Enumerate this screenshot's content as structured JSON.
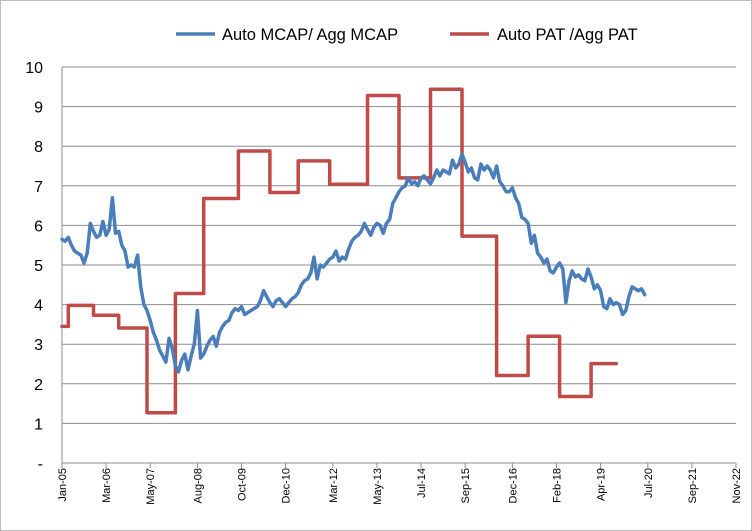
{
  "chart_data": {
    "type": "line",
    "title": "",
    "xlabel": "",
    "ylabel": "",
    "ylim": [
      0,
      10
    ],
    "y_ticks": [
      "-",
      "1",
      "2",
      "3",
      "4",
      "5",
      "6",
      "7",
      "8",
      "9",
      "10"
    ],
    "grid": true,
    "legend_position": "top",
    "x_range": [
      0,
      214
    ],
    "x_tick_labels": [
      "Jan-05",
      "Mar-06",
      "May-07",
      "Aug-08",
      "Oct-09",
      "Dec-10",
      "Mar-12",
      "May-13",
      "Jul-14",
      "Sep-15",
      "Dec-16",
      "Feb-18",
      "Apr-19",
      "Jul-20",
      "Sep-21",
      "Nov-22"
    ],
    "x_tick_positions": [
      0,
      14,
      28,
      43,
      57,
      71,
      86,
      100,
      114,
      128,
      143,
      157,
      171,
      186,
      200,
      214
    ],
    "series": [
      {
        "name": "Auto MCAP/ Agg MCAP",
        "color": "#4a7ebb",
        "points": [
          [
            0,
            5.65
          ],
          [
            1,
            5.6
          ],
          [
            2,
            5.7
          ],
          [
            3,
            5.5
          ],
          [
            4,
            5.35
          ],
          [
            6,
            5.25
          ],
          [
            7,
            5.05
          ],
          [
            8,
            5.3
          ],
          [
            9,
            6.05
          ],
          [
            10,
            5.85
          ],
          [
            11,
            5.7
          ],
          [
            12,
            5.75
          ],
          [
            13,
            6.1
          ],
          [
            14,
            5.75
          ],
          [
            15,
            5.9
          ],
          [
            16,
            6.7
          ],
          [
            17,
            5.8
          ],
          [
            18,
            5.85
          ],
          [
            19,
            5.5
          ],
          [
            20,
            5.35
          ],
          [
            21,
            4.95
          ],
          [
            22,
            5.0
          ],
          [
            23,
            4.95
          ],
          [
            24,
            5.25
          ],
          [
            25,
            4.45
          ],
          [
            26,
            4.0
          ],
          [
            27,
            3.85
          ],
          [
            28,
            3.6
          ],
          [
            29,
            3.3
          ],
          [
            30,
            3.1
          ],
          [
            31,
            2.85
          ],
          [
            32,
            2.7
          ],
          [
            33,
            2.55
          ],
          [
            34,
            3.15
          ],
          [
            35,
            2.9
          ],
          [
            36,
            2.45
          ],
          [
            37,
            2.3
          ],
          [
            38,
            2.6
          ],
          [
            39,
            2.75
          ],
          [
            40,
            2.35
          ],
          [
            41,
            2.7
          ],
          [
            42,
            3.0
          ],
          [
            43,
            3.85
          ],
          [
            44,
            2.65
          ],
          [
            45,
            2.75
          ],
          [
            46,
            2.95
          ],
          [
            47,
            3.1
          ],
          [
            48,
            3.2
          ],
          [
            49,
            2.95
          ],
          [
            50,
            3.3
          ],
          [
            51,
            3.45
          ],
          [
            52,
            3.55
          ],
          [
            53,
            3.6
          ],
          [
            54,
            3.8
          ],
          [
            55,
            3.9
          ],
          [
            56,
            3.85
          ],
          [
            57,
            3.95
          ],
          [
            58,
            3.75
          ],
          [
            59,
            3.8
          ],
          [
            60,
            3.85
          ],
          [
            61,
            3.9
          ],
          [
            62,
            3.95
          ],
          [
            63,
            4.1
          ],
          [
            64,
            4.35
          ],
          [
            65,
            4.2
          ],
          [
            66,
            4.05
          ],
          [
            67,
            3.95
          ],
          [
            68,
            4.1
          ],
          [
            69,
            4.15
          ],
          [
            70,
            4.05
          ],
          [
            71,
            3.95
          ],
          [
            72,
            4.05
          ],
          [
            73,
            4.15
          ],
          [
            74,
            4.2
          ],
          [
            75,
            4.3
          ],
          [
            76,
            4.5
          ],
          [
            77,
            4.6
          ],
          [
            78,
            4.65
          ],
          [
            79,
            4.8
          ],
          [
            80,
            5.2
          ],
          [
            81,
            4.65
          ],
          [
            82,
            5.0
          ],
          [
            83,
            4.95
          ],
          [
            84,
            5.05
          ],
          [
            85,
            5.15
          ],
          [
            86,
            5.2
          ],
          [
            87,
            5.35
          ],
          [
            88,
            5.1
          ],
          [
            89,
            5.2
          ],
          [
            90,
            5.15
          ],
          [
            91,
            5.4
          ],
          [
            92,
            5.6
          ],
          [
            93,
            5.7
          ],
          [
            94,
            5.75
          ],
          [
            95,
            5.85
          ],
          [
            96,
            6.05
          ],
          [
            97,
            5.9
          ],
          [
            98,
            5.75
          ],
          [
            99,
            5.95
          ],
          [
            100,
            6.05
          ],
          [
            101,
            6.0
          ],
          [
            102,
            5.8
          ],
          [
            103,
            6.05
          ],
          [
            104,
            6.15
          ],
          [
            105,
            6.55
          ],
          [
            106,
            6.7
          ],
          [
            107,
            6.85
          ],
          [
            108,
            6.95
          ],
          [
            109,
            7.0
          ],
          [
            110,
            7.2
          ],
          [
            111,
            7.05
          ],
          [
            112,
            7.1
          ],
          [
            113,
            7.0
          ],
          [
            114,
            7.2
          ],
          [
            115,
            7.25
          ],
          [
            116,
            7.15
          ],
          [
            117,
            7.05
          ],
          [
            118,
            7.2
          ],
          [
            119,
            7.4
          ],
          [
            120,
            7.25
          ],
          [
            121,
            7.4
          ],
          [
            122,
            7.35
          ],
          [
            123,
            7.3
          ],
          [
            124,
            7.65
          ],
          [
            125,
            7.45
          ],
          [
            126,
            7.55
          ],
          [
            127,
            7.8
          ],
          [
            128,
            7.6
          ],
          [
            129,
            7.35
          ],
          [
            130,
            7.45
          ],
          [
            131,
            7.2
          ],
          [
            132,
            7.15
          ],
          [
            133,
            7.55
          ],
          [
            134,
            7.4
          ],
          [
            135,
            7.5
          ],
          [
            136,
            7.4
          ],
          [
            137,
            7.2
          ],
          [
            138,
            7.5
          ],
          [
            139,
            7.1
          ],
          [
            140,
            7.0
          ],
          [
            141,
            6.85
          ],
          [
            142,
            6.85
          ],
          [
            143,
            6.95
          ],
          [
            144,
            6.7
          ],
          [
            145,
            6.55
          ],
          [
            146,
            6.2
          ],
          [
            147,
            6.15
          ],
          [
            148,
            6.05
          ],
          [
            149,
            5.55
          ],
          [
            150,
            5.75
          ],
          [
            151,
            5.3
          ],
          [
            152,
            5.2
          ],
          [
            153,
            5.05
          ],
          [
            154,
            5.15
          ],
          [
            155,
            4.85
          ],
          [
            156,
            4.8
          ],
          [
            157,
            4.95
          ],
          [
            158,
            5.05
          ],
          [
            159,
            4.9
          ],
          [
            160,
            4.05
          ],
          [
            161,
            4.6
          ],
          [
            162,
            4.85
          ],
          [
            163,
            4.7
          ],
          [
            164,
            4.75
          ],
          [
            165,
            4.65
          ],
          [
            166,
            4.6
          ],
          [
            167,
            4.9
          ],
          [
            168,
            4.7
          ],
          [
            169,
            4.4
          ],
          [
            170,
            4.5
          ],
          [
            171,
            4.35
          ],
          [
            172,
            3.95
          ],
          [
            173,
            3.9
          ],
          [
            174,
            4.15
          ],
          [
            175,
            4.0
          ],
          [
            176,
            4.05
          ],
          [
            177,
            4.0
          ],
          [
            178,
            3.75
          ],
          [
            179,
            3.85
          ],
          [
            180,
            4.2
          ],
          [
            181,
            4.45
          ],
          [
            182,
            4.4
          ],
          [
            183,
            4.35
          ],
          [
            184,
            4.4
          ],
          [
            185,
            4.25
          ]
        ]
      },
      {
        "name": "Auto PAT /Agg PAT",
        "color": "#be4b48",
        "points": [
          [
            0,
            3.45
          ],
          [
            2,
            3.45
          ],
          [
            2,
            3.98
          ],
          [
            10,
            3.98
          ],
          [
            10,
            3.73
          ],
          [
            18,
            3.73
          ],
          [
            18,
            3.41
          ],
          [
            27,
            3.41
          ],
          [
            27,
            1.27
          ],
          [
            36,
            1.27
          ],
          [
            36,
            4.28
          ],
          [
            45,
            4.28
          ],
          [
            45,
            6.68
          ],
          [
            56,
            6.68
          ],
          [
            56,
            7.88
          ],
          [
            66,
            7.88
          ],
          [
            66,
            6.83
          ],
          [
            75,
            6.83
          ],
          [
            75,
            7.63
          ],
          [
            85,
            7.63
          ],
          [
            85,
            7.04
          ],
          [
            97,
            7.04
          ],
          [
            97,
            9.28
          ],
          [
            107,
            9.28
          ],
          [
            107,
            7.2
          ],
          [
            117,
            7.2
          ],
          [
            117,
            9.44
          ],
          [
            127,
            9.44
          ],
          [
            127,
            5.73
          ],
          [
            138,
            5.73
          ],
          [
            138,
            2.21
          ],
          [
            148,
            2.21
          ],
          [
            148,
            3.2
          ],
          [
            158,
            3.2
          ],
          [
            158,
            1.68
          ],
          [
            168,
            1.68
          ],
          [
            168,
            2.51
          ],
          [
            176,
            2.51
          ]
        ]
      }
    ]
  }
}
